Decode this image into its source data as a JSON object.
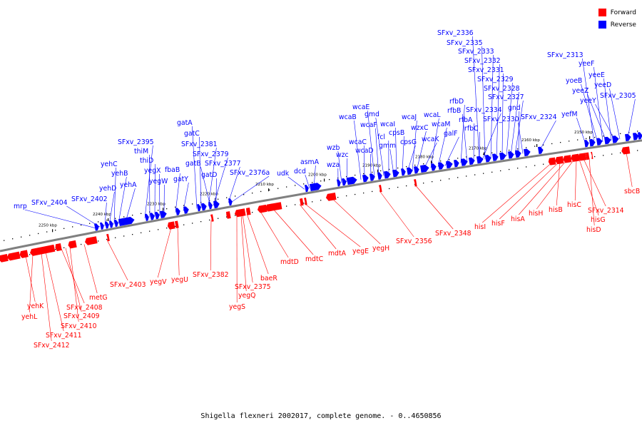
{
  "caption": "Shigella flexneri 2002017, complete genome. - 0..4650856",
  "legend": [
    {
      "label": "Forward",
      "color": "#ff0000"
    },
    {
      "label": "Reverse",
      "color": "#0000ff"
    }
  ],
  "colors": {
    "forward": "#ff0000",
    "reverse": "#0000ff",
    "backbone": "#808080"
  },
  "ticks": [
    "2250 kbp",
    "2240 kbp",
    "2230 kbp",
    "2220 kbp",
    "2210 kbp",
    "2200 kbp",
    "2190 kbp",
    "2180 kbp",
    "2170 kbp",
    "2160 kbp",
    "2150 kbp"
  ],
  "genes_reverse": [
    "mrp",
    "SFxv_2404",
    "SFxv_2402",
    "yehD",
    "yehC",
    "yehB",
    "yehA",
    "SFxv_2395",
    "thiM",
    "thiD",
    "yegX",
    "yegW",
    "fbaB",
    "gatY",
    "gatA",
    "gatC",
    "SFxv_2381",
    "gatB",
    "SFxv_2379",
    "gatD",
    "SFxv_2377",
    "SFxv_2376a",
    "udk",
    "dcd",
    "asmA",
    "wza",
    "wzb",
    "wzc",
    "wcaB",
    "wcaC",
    "wcaD",
    "wcaE",
    "wcaF",
    "gmd",
    "fcl",
    "gmm",
    "wcaI",
    "cpsB",
    "cpsG",
    "wcaJ",
    "wzxC",
    "wcaK",
    "wcaL",
    "wcaM",
    "galF",
    "SFxv_2336",
    "SFxv_2335",
    "SFxv_2333",
    "SFxv_2332",
    "SFxv_2331",
    "rfbD",
    "rfbB",
    "rfbA",
    "rfbC",
    "SFxv_2334",
    "SFxv_2329",
    "SFxv_2328",
    "SFxv_2327",
    "gnd",
    "SFxv_2330",
    "SFxv_2324",
    "yefM",
    "SFxv_2313",
    "yoeB",
    "yeeF",
    "yeeZ",
    "yeeE",
    "yeeY",
    "yeeD",
    "SFxv_2305"
  ],
  "genes_forward": [
    "yehK",
    "yehL",
    "SFxv_2408",
    "SFxv_2409",
    "SFxv_2410",
    "SFxv_2411",
    "SFxv_2412",
    "metG",
    "SFxv_2403",
    "yegV",
    "yegU",
    "SFxv_2382",
    "SFxv_2375",
    "yegQ",
    "yegS",
    "baeR",
    "mdtD",
    "mdtC",
    "mdtA",
    "yegE",
    "yegH",
    "SFxv_2356",
    "SFxv_2348",
    "hisI",
    "hisF",
    "hisA",
    "hisH",
    "hisB",
    "hisC",
    "SFxv_2314",
    "hisG",
    "hisD",
    "sbcB"
  ]
}
